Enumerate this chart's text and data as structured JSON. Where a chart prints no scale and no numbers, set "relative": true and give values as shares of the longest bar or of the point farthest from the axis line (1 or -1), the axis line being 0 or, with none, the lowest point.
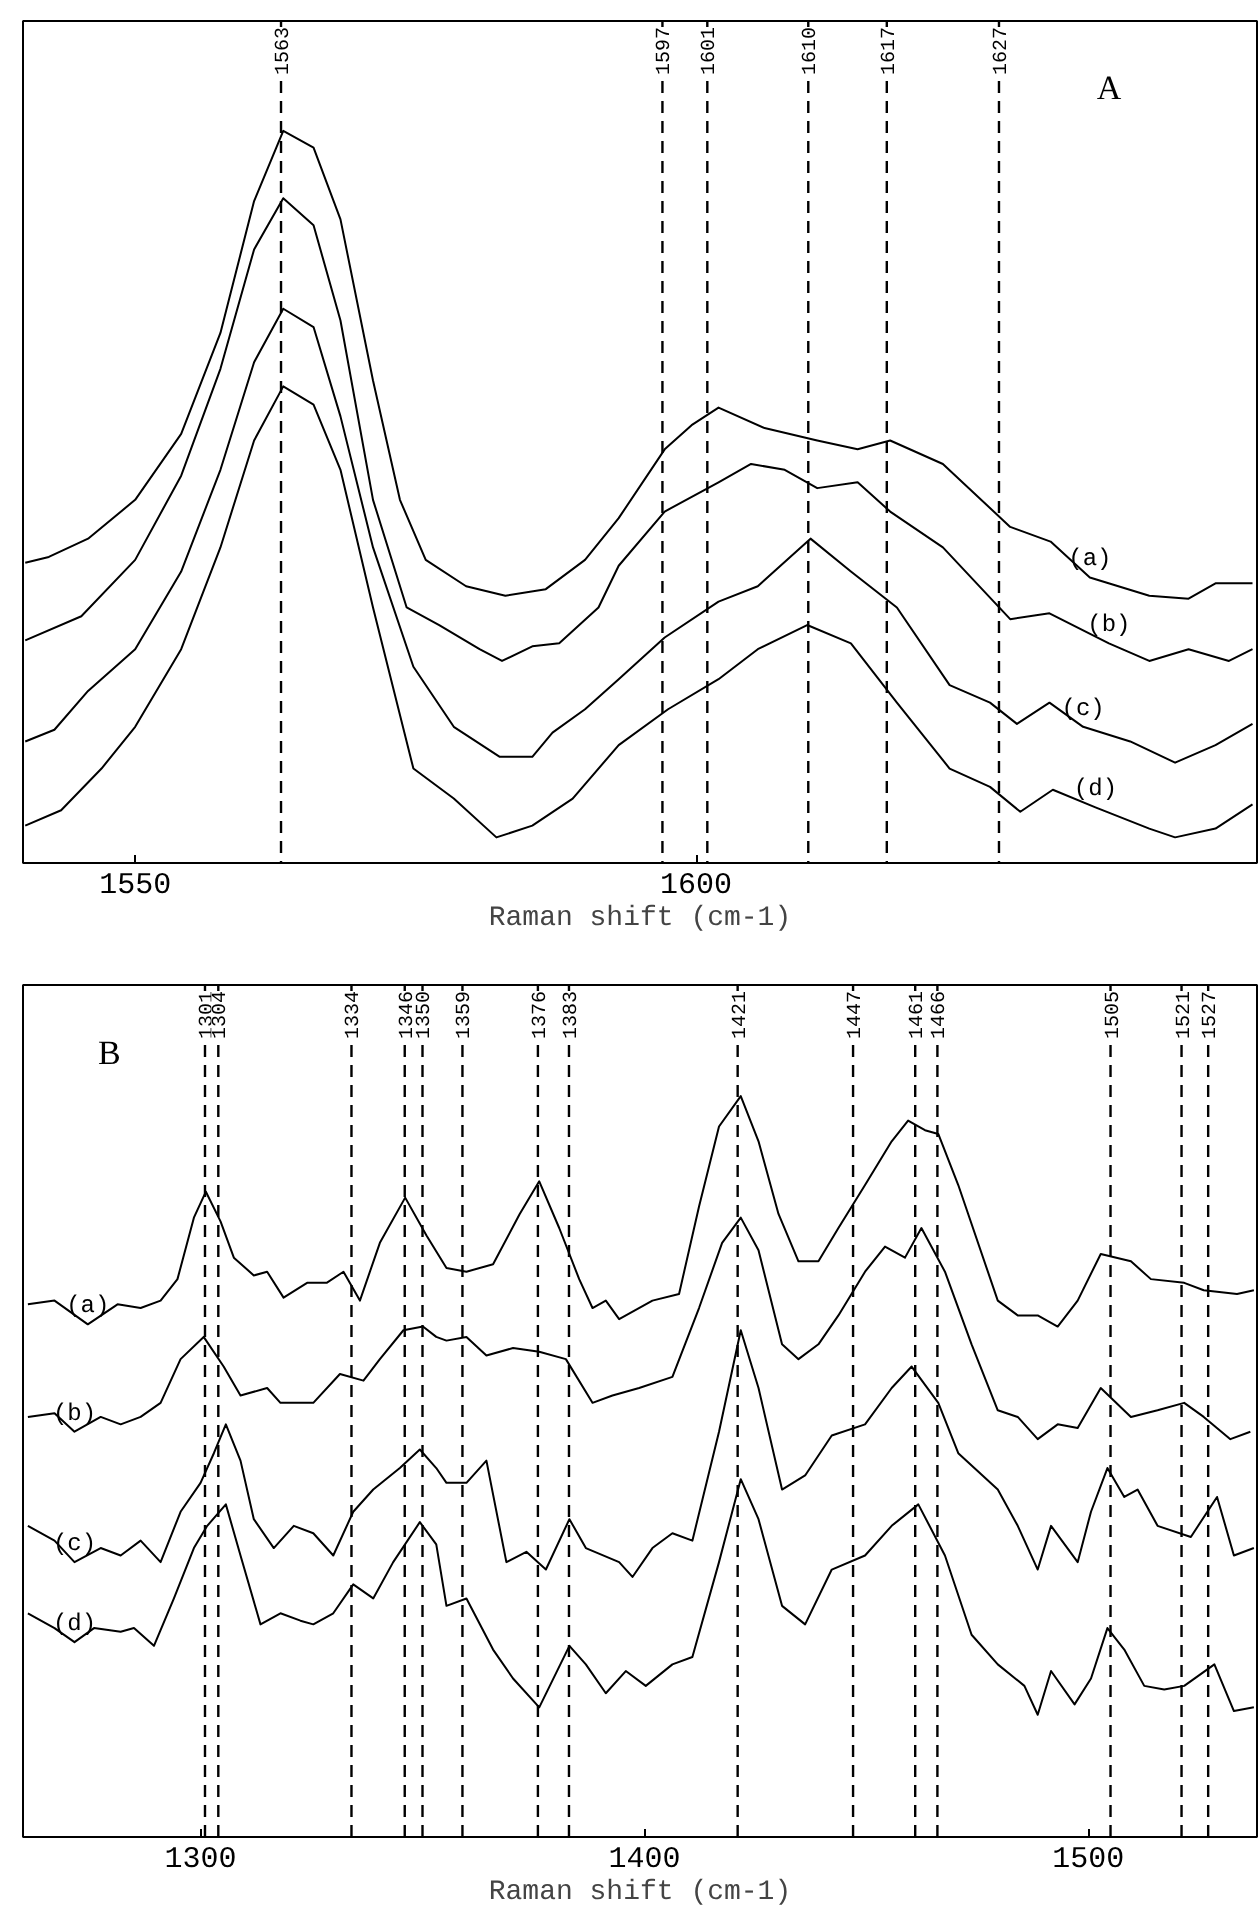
{
  "chart_data": [
    {
      "type": "line",
      "title": "A",
      "xlabel": "Raman shift (cm-1)",
      "relative": true,
      "tick_labels": "x",
      "xlim": [
        1540,
        1650
      ],
      "xticks": [
        1550,
        1600
      ],
      "series": [
        {
          "name": "(a)",
          "color": "#000000",
          "x": [
            1540.2,
            1542.3,
            1545.8,
            1550.0,
            1554.1,
            1557.6,
            1560.6,
            1563.2,
            1565.9,
            1568.3,
            1571.2,
            1573.6,
            1575.9,
            1579.5,
            1583.0,
            1586.6,
            1590.1,
            1593.1,
            1597.2,
            1599.6,
            1602.0,
            1606.1,
            1610.8,
            1614.4,
            1617.3,
            1622.0,
            1628.0,
            1631.6,
            1635.1,
            1640.4,
            1643.9,
            1646.3,
            1649.6
          ],
          "values": [
            0.41,
            0.418,
            0.443,
            0.496,
            0.586,
            0.724,
            0.904,
            1.0,
            0.977,
            0.879,
            0.659,
            0.496,
            0.414,
            0.378,
            0.365,
            0.374,
            0.414,
            0.471,
            0.565,
            0.598,
            0.622,
            0.594,
            0.577,
            0.565,
            0.577,
            0.545,
            0.459,
            0.439,
            0.39,
            0.365,
            0.361,
            0.382,
            0.382
          ]
        },
        {
          "name": "(b)",
          "color": "#000000",
          "x": [
            1540.2,
            1545.2,
            1550.0,
            1554.1,
            1557.6,
            1560.6,
            1563.2,
            1565.9,
            1568.3,
            1571.2,
            1574.2,
            1577.1,
            1580.7,
            1582.7,
            1585.4,
            1587.8,
            1591.3,
            1593.1,
            1597.2,
            1602.0,
            1604.9,
            1607.9,
            1610.8,
            1614.4,
            1617.3,
            1622.0,
            1628.0,
            1631.5,
            1636.8,
            1640.4,
            1643.9,
            1647.5,
            1649.6
          ],
          "values": [
            0.304,
            0.337,
            0.414,
            0.529,
            0.675,
            0.838,
            0.908,
            0.871,
            0.741,
            0.496,
            0.349,
            0.325,
            0.292,
            0.276,
            0.296,
            0.3,
            0.349,
            0.406,
            0.48,
            0.52,
            0.545,
            0.537,
            0.512,
            0.52,
            0.48,
            0.431,
            0.333,
            0.341,
            0.3,
            0.276,
            0.292,
            0.276,
            0.292
          ]
        },
        {
          "name": "(c)",
          "color": "#000000",
          "x": [
            1540.2,
            1542.8,
            1545.8,
            1550.0,
            1554.1,
            1557.6,
            1560.6,
            1563.2,
            1565.9,
            1568.3,
            1571.2,
            1574.8,
            1578.4,
            1582.5,
            1585.4,
            1587.2,
            1590.1,
            1593.1,
            1597.2,
            1602.0,
            1605.5,
            1610.2,
            1613.8,
            1617.9,
            1622.6,
            1626.2,
            1628.6,
            1631.5,
            1634.5,
            1638.7,
            1642.7,
            1646.3,
            1649.6
          ],
          "values": [
            0.166,
            0.182,
            0.235,
            0.292,
            0.398,
            0.537,
            0.684,
            0.757,
            0.732,
            0.61,
            0.431,
            0.268,
            0.186,
            0.145,
            0.145,
            0.178,
            0.21,
            0.251,
            0.308,
            0.357,
            0.378,
            0.443,
            0.398,
            0.349,
            0.243,
            0.219,
            0.19,
            0.219,
            0.186,
            0.166,
            0.137,
            0.161,
            0.19
          ]
        },
        {
          "name": "(d)",
          "color": "#000000",
          "x": [
            1540.2,
            1543.4,
            1547.0,
            1550.0,
            1554.1,
            1557.6,
            1560.6,
            1563.2,
            1565.9,
            1568.3,
            1571.2,
            1574.8,
            1578.4,
            1582.2,
            1585.4,
            1589.0,
            1593.1,
            1597.5,
            1602.0,
            1605.5,
            1609.9,
            1613.8,
            1617.9,
            1622.6,
            1626.2,
            1628.9,
            1631.8,
            1635.6,
            1640.4,
            1642.7,
            1646.3,
            1649.6
          ],
          "values": [
            0.051,
            0.072,
            0.129,
            0.186,
            0.292,
            0.431,
            0.577,
            0.651,
            0.626,
            0.537,
            0.349,
            0.129,
            0.088,
            0.035,
            0.051,
            0.088,
            0.161,
            0.21,
            0.251,
            0.292,
            0.325,
            0.3,
            0.219,
            0.129,
            0.104,
            0.07,
            0.1,
            0.076,
            0.047,
            0.035,
            0.047,
            0.08
          ]
        }
      ],
      "ref_lines": [
        {
          "axis": "x",
          "value": 1563,
          "label": "1563",
          "line_style": "dashed",
          "color": "#000000"
        },
        {
          "axis": "x",
          "value": 1597,
          "label": "1597",
          "line_style": "dashed",
          "color": "#000000"
        },
        {
          "axis": "x",
          "value": 1601,
          "label": "1601",
          "line_style": "dashed",
          "color": "#000000"
        },
        {
          "axis": "x",
          "value": 1610,
          "label": "1610",
          "line_style": "dashed",
          "color": "#000000"
        },
        {
          "axis": "x",
          "value": 1617,
          "label": "1617",
          "line_style": "dashed",
          "color": "#000000"
        },
        {
          "axis": "x",
          "value": 1627,
          "label": "1627",
          "line_style": "dashed",
          "color": "#000000"
        }
      ]
    },
    {
      "type": "line",
      "title": "B",
      "xlabel": "Raman shift (cm-1)",
      "relative": true,
      "tick_labels": "x",
      "xlim": [
        1260,
        1538
      ],
      "xticks": [
        1300,
        1400,
        1500
      ],
      "series": [
        {
          "name": "(a)",
          "color": "#000000",
          "x": [
            1261.1,
            1267.1,
            1274.6,
            1281.3,
            1286.5,
            1291.0,
            1294.8,
            1298.5,
            1301.2,
            1304.5,
            1307.5,
            1312.0,
            1315.0,
            1318.7,
            1324.0,
            1328.4,
            1332.2,
            1335.9,
            1340.4,
            1346.1,
            1350.9,
            1355.4,
            1359.9,
            1365.9,
            1371.9,
            1376.3,
            1380.8,
            1385.3,
            1388.3,
            1391.3,
            1394.3,
            1401.8,
            1407.8,
            1412.3,
            1416.8,
            1421.7,
            1425.7,
            1430.2,
            1434.7,
            1439.2,
            1443.7,
            1449.7,
            1455.7,
            1459.4,
            1463.2,
            1466.2,
            1470.7,
            1479.6,
            1484.1,
            1488.6,
            1493.1,
            1497.6,
            1502.8,
            1509.6,
            1514.1,
            1521.6,
            1526.0,
            1533.5,
            1537.3
          ],
          "values": [
            0.719,
            0.724,
            0.692,
            0.719,
            0.714,
            0.724,
            0.753,
            0.836,
            0.871,
            0.831,
            0.782,
            0.758,
            0.763,
            0.728,
            0.748,
            0.748,
            0.763,
            0.724,
            0.802,
            0.863,
            0.812,
            0.768,
            0.763,
            0.773,
            0.841,
            0.885,
            0.822,
            0.753,
            0.714,
            0.724,
            0.699,
            0.724,
            0.733,
            0.851,
            0.959,
            1.0,
            0.939,
            0.841,
            0.777,
            0.777,
            0.822,
            0.88,
            0.939,
            0.967,
            0.954,
            0.949,
            0.88,
            0.724,
            0.704,
            0.704,
            0.689,
            0.724,
            0.787,
            0.777,
            0.753,
            0.748,
            0.738,
            0.733,
            0.738
          ]
        },
        {
          "name": "(b)",
          "color": "#000000",
          "x": [
            1261.1,
            1267.1,
            1271.6,
            1277.5,
            1282.0,
            1286.5,
            1291.0,
            1295.5,
            1300.7,
            1305.2,
            1309.0,
            1315.0,
            1318.0,
            1325.4,
            1331.4,
            1336.7,
            1340.4,
            1345.7,
            1350.1,
            1353.1,
            1355.4,
            1359.9,
            1364.4,
            1370.4,
            1376.3,
            1382.3,
            1388.3,
            1392.8,
            1398.8,
            1406.3,
            1412.3,
            1417.5,
            1421.7,
            1425.7,
            1431.0,
            1434.7,
            1439.2,
            1443.7,
            1449.7,
            1454.2,
            1458.7,
            1462.4,
            1467.7,
            1473.7,
            1479.6,
            1484.1,
            1488.6,
            1493.1,
            1497.6,
            1502.8,
            1509.6,
            1515.6,
            1521.6,
            1526.0,
            1532.0,
            1536.5
          ],
          "values": [
            0.567,
            0.572,
            0.547,
            0.567,
            0.557,
            0.567,
            0.586,
            0.645,
            0.675,
            0.635,
            0.596,
            0.606,
            0.586,
            0.586,
            0.625,
            0.616,
            0.645,
            0.684,
            0.689,
            0.675,
            0.67,
            0.675,
            0.65,
            0.66,
            0.655,
            0.645,
            0.586,
            0.596,
            0.606,
            0.621,
            0.714,
            0.802,
            0.836,
            0.792,
            0.665,
            0.645,
            0.665,
            0.704,
            0.763,
            0.797,
            0.782,
            0.822,
            0.763,
            0.665,
            0.576,
            0.567,
            0.537,
            0.557,
            0.552,
            0.606,
            0.567,
            0.576,
            0.586,
            0.567,
            0.537,
            0.547
          ]
        },
        {
          "name": "(c)",
          "color": "#000000",
          "x": [
            1261.1,
            1267.1,
            1271.6,
            1277.5,
            1282.0,
            1286.5,
            1291.0,
            1295.5,
            1300.0,
            1303.0,
            1305.7,
            1309.0,
            1312.0,
            1316.5,
            1321.0,
            1325.4,
            1329.9,
            1334.4,
            1338.9,
            1344.9,
            1349.4,
            1353.1,
            1355.4,
            1359.9,
            1364.4,
            1368.9,
            1373.4,
            1377.8,
            1383.1,
            1386.8,
            1394.3,
            1397.3,
            1401.8,
            1406.3,
            1410.8,
            1416.8,
            1421.7,
            1425.7,
            1431.0,
            1436.2,
            1442.2,
            1449.7,
            1455.7,
            1460.2,
            1466.2,
            1470.7,
            1479.6,
            1484.1,
            1488.6,
            1491.6,
            1497.6,
            1500.6,
            1504.3,
            1508.1,
            1511.1,
            1515.6,
            1523.1,
            1529.0,
            1532.8,
            1537.3
          ],
          "values": [
            0.42,
            0.4,
            0.371,
            0.39,
            0.38,
            0.4,
            0.371,
            0.439,
            0.478,
            0.518,
            0.557,
            0.508,
            0.429,
            0.39,
            0.42,
            0.41,
            0.38,
            0.439,
            0.469,
            0.498,
            0.523,
            0.498,
            0.478,
            0.478,
            0.508,
            0.371,
            0.385,
            0.361,
            0.429,
            0.39,
            0.371,
            0.351,
            0.39,
            0.41,
            0.4,
            0.547,
            0.684,
            0.606,
            0.469,
            0.488,
            0.542,
            0.557,
            0.606,
            0.635,
            0.586,
            0.518,
            0.469,
            0.42,
            0.361,
            0.42,
            0.371,
            0.439,
            0.498,
            0.459,
            0.469,
            0.42,
            0.405,
            0.459,
            0.38,
            0.39
          ]
        },
        {
          "name": "(d)",
          "color": "#000000",
          "x": [
            1261.1,
            1267.1,
            1271.6,
            1276.0,
            1282.0,
            1285.0,
            1289.5,
            1294.0,
            1298.5,
            1301.5,
            1305.7,
            1309.0,
            1313.5,
            1318.0,
            1322.5,
            1325.4,
            1329.9,
            1334.4,
            1338.9,
            1343.4,
            1349.4,
            1353.1,
            1355.4,
            1359.9,
            1365.9,
            1370.4,
            1376.3,
            1383.1,
            1386.8,
            1391.3,
            1395.8,
            1400.3,
            1406.3,
            1410.8,
            1416.8,
            1421.7,
            1425.7,
            1431.0,
            1436.2,
            1442.2,
            1449.7,
            1455.7,
            1461.7,
            1467.7,
            1473.7,
            1479.6,
            1485.6,
            1488.6,
            1491.6,
            1496.9,
            1500.6,
            1504.3,
            1508.1,
            1512.6,
            1517.1,
            1521.6,
            1528.4,
            1532.8,
            1537.3
          ],
          "values": [
            0.302,
            0.282,
            0.263,
            0.282,
            0.277,
            0.282,
            0.258,
            0.322,
            0.39,
            0.42,
            0.449,
            0.38,
            0.287,
            0.302,
            0.292,
            0.287,
            0.302,
            0.341,
            0.322,
            0.371,
            0.425,
            0.395,
            0.312,
            0.322,
            0.253,
            0.214,
            0.175,
            0.258,
            0.233,
            0.194,
            0.224,
            0.204,
            0.233,
            0.243,
            0.371,
            0.483,
            0.429,
            0.312,
            0.287,
            0.361,
            0.38,
            0.42,
            0.449,
            0.38,
            0.273,
            0.233,
            0.204,
            0.165,
            0.224,
            0.179,
            0.214,
            0.282,
            0.253,
            0.204,
            0.199,
            0.204,
            0.233,
            0.17,
            0.175
          ]
        }
      ],
      "ref_lines": [
        {
          "axis": "x",
          "value": 1301,
          "label": "1301",
          "line_style": "dashed",
          "color": "#000000"
        },
        {
          "axis": "x",
          "value": 1304,
          "label": "1304",
          "line_style": "dashed",
          "color": "#000000"
        },
        {
          "axis": "x",
          "value": 1334,
          "label": "1334",
          "line_style": "dashed",
          "color": "#000000"
        },
        {
          "axis": "x",
          "value": 1346,
          "label": "1346",
          "line_style": "dashed",
          "color": "#000000"
        },
        {
          "axis": "x",
          "value": 1350,
          "label": "1350",
          "line_style": "dashed",
          "color": "#000000"
        },
        {
          "axis": "x",
          "value": 1359,
          "label": "1359",
          "line_style": "dashed",
          "color": "#000000"
        },
        {
          "axis": "x",
          "value": 1376,
          "label": "1376",
          "line_style": "dashed",
          "color": "#000000"
        },
        {
          "axis": "x",
          "value": 1383,
          "label": "1383",
          "line_style": "dashed",
          "color": "#000000"
        },
        {
          "axis": "x",
          "value": 1421,
          "label": "1421",
          "line_style": "dashed",
          "color": "#000000"
        },
        {
          "axis": "x",
          "value": 1447,
          "label": "1447",
          "line_style": "dashed",
          "color": "#000000"
        },
        {
          "axis": "x",
          "value": 1461,
          "label": "1461",
          "line_style": "dashed",
          "color": "#000000"
        },
        {
          "axis": "x",
          "value": 1466,
          "label": "1466",
          "line_style": "dashed",
          "color": "#000000"
        },
        {
          "axis": "x",
          "value": 1505,
          "label": "1505",
          "line_style": "dashed",
          "color": "#000000"
        },
        {
          "axis": "x",
          "value": 1521,
          "label": "1521",
          "line_style": "dashed",
          "color": "#000000"
        },
        {
          "axis": "x",
          "value": 1527,
          "label": "1527",
          "line_style": "dashed",
          "color": "#000000"
        }
      ]
    }
  ]
}
